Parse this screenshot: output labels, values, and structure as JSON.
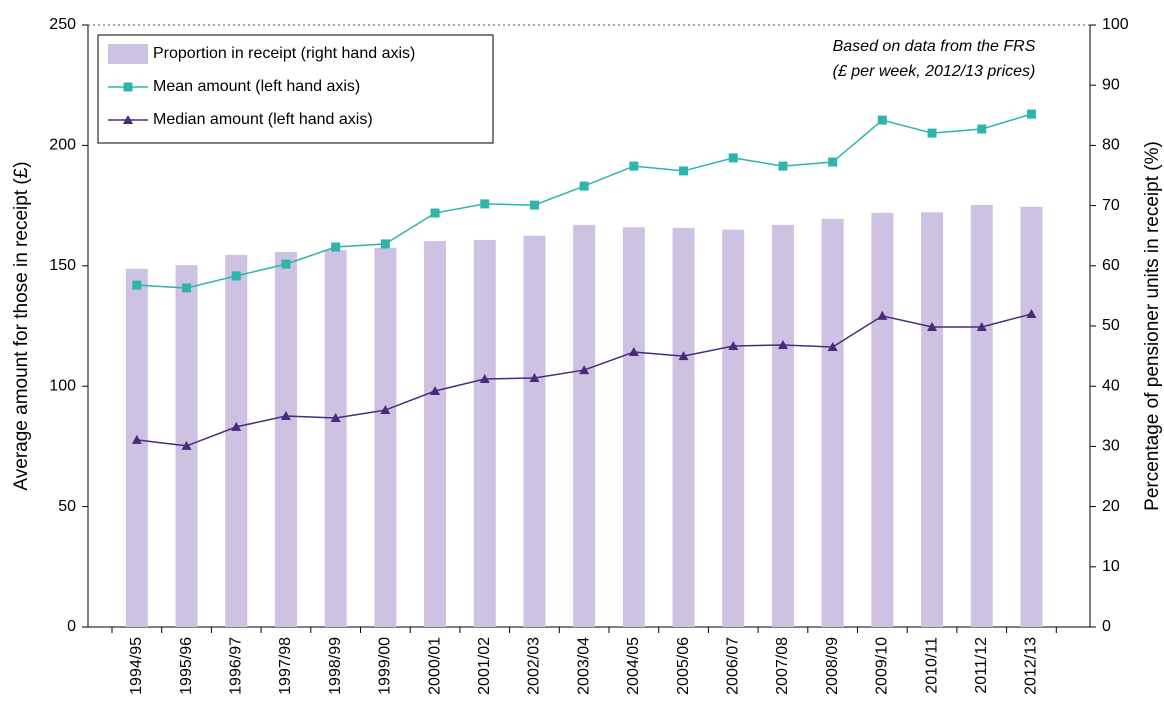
{
  "chart_data": {
    "type": "bar",
    "annotation": [
      "Based on data from the FRS",
      "(£ per week, 2012/13 prices)"
    ],
    "ylabel": "Average amount for those in receipt (£)",
    "y2label": "Percentage of pensioner units in receipt (%)",
    "categories": [
      "1994/95",
      "1995/96",
      "1996/97",
      "1997/98",
      "1998/99",
      "1999/00",
      "2000/01",
      "2001/02",
      "2002/03",
      "2003/04",
      "2004/05",
      "2005/06",
      "2006/07",
      "2007/08",
      "2008/09",
      "2009/10",
      "2010/11",
      "2011/12",
      "2012/13"
    ],
    "series": [
      {
        "name": "Proportion in receipt (right hand axis)",
        "type": "bar",
        "axis": "y2",
        "color": "#cdc2e1",
        "values": [
          59.5,
          60.1,
          61.8,
          62.3,
          62.6,
          63.0,
          64.1,
          64.3,
          65.0,
          66.8,
          66.4,
          66.3,
          66.0,
          66.8,
          67.8,
          68.8,
          68.9,
          70.1,
          69.8
        ]
      },
      {
        "name": "Mean amount (left hand axis)",
        "type": "line",
        "marker": "square",
        "color": "#2db5ac",
        "values": [
          142,
          140.8,
          145.8,
          150.7,
          157.8,
          159.1,
          171.9,
          175.7,
          175.2,
          183.1,
          191.4,
          189.4,
          194.8,
          191.4,
          193.1,
          210.5,
          205.1,
          206.8,
          213.0
        ]
      },
      {
        "name": "Median amount (left hand axis)",
        "type": "line",
        "marker": "triangle",
        "color": "#4a2a7c",
        "values": [
          77.7,
          75.2,
          83.1,
          87.6,
          86.8,
          90.1,
          98.0,
          103.0,
          103.4,
          106.7,
          114.2,
          112.5,
          116.7,
          117.1,
          116.3,
          129.2,
          124.6,
          124.6,
          130.0
        ]
      }
    ],
    "ylim": [
      0,
      250
    ],
    "yticks": [
      0,
      50,
      100,
      150,
      200,
      250
    ],
    "y2lim": [
      0,
      100
    ],
    "y2ticks": [
      0,
      10,
      20,
      30,
      40,
      50,
      60,
      70,
      80,
      90,
      100
    ],
    "legend": "upper left"
  }
}
